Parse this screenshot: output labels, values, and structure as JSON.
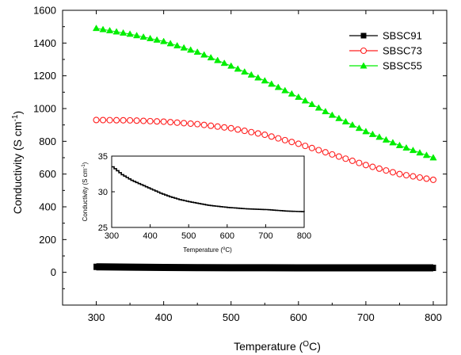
{
  "chart_data": [
    {
      "type": "line",
      "role": "main",
      "xlabel": "Temperature (",
      "xlabel_sup": "O",
      "xlabel_end": "C)",
      "ylabel": "Conductivity (S cm",
      "ylabel_sup": "-1",
      "ylabel_end": ")",
      "xlim": [
        250,
        820
      ],
      "ylim": [
        -200,
        1600
      ],
      "xticks": [
        300,
        400,
        500,
        600,
        700,
        800
      ],
      "yticks": [
        0,
        200,
        400,
        600,
        800,
        1000,
        1200,
        1400,
        1600
      ],
      "legend_position": "top-right",
      "series": [
        {
          "name": "SBSC91",
          "color": "#000000",
          "marker": "filled-square",
          "x": [
            300,
            350,
            400,
            450,
            500,
            550,
            600,
            650,
            700,
            750,
            800
          ],
          "y": [
            33.5,
            31.5,
            30.0,
            28.9,
            28.3,
            27.9,
            27.7,
            27.6,
            27.5,
            27.3,
            27.2
          ]
        },
        {
          "name": "SBSC73",
          "color": "#ff2020",
          "marker": "open-circle",
          "x": [
            300,
            350,
            400,
            450,
            500,
            550,
            600,
            650,
            700,
            750,
            800
          ],
          "y": [
            930,
            928,
            920,
            905,
            880,
            840,
            785,
            720,
            655,
            600,
            565
          ]
        },
        {
          "name": "SBSC55",
          "color": "#00ee00",
          "marker": "filled-triangle",
          "x": [
            300,
            350,
            400,
            450,
            500,
            550,
            600,
            650,
            700,
            750,
            800
          ],
          "y": [
            1490,
            1455,
            1410,
            1345,
            1260,
            1170,
            1070,
            960,
            860,
            775,
            700
          ]
        }
      ]
    },
    {
      "type": "line",
      "role": "inset",
      "xlabel": "Temperature (",
      "xlabel_sup": "o",
      "xlabel_end": "C)",
      "ylabel": "Conductivity (S cm",
      "ylabel_sup": "-1",
      "ylabel_end": ")",
      "xlim": [
        300,
        800
      ],
      "ylim": [
        25,
        35
      ],
      "xticks": [
        300,
        400,
        500,
        600,
        700,
        800
      ],
      "yticks": [
        25,
        30,
        35
      ],
      "series": [
        {
          "name": "SBSC91",
          "color": "#000000",
          "x": [
            300,
            325,
            350,
            375,
            400,
            425,
            450,
            475,
            500,
            550,
            600,
            650,
            700,
            750,
            800
          ],
          "y": [
            33.5,
            32.4,
            31.6,
            31.0,
            30.4,
            29.8,
            29.3,
            28.9,
            28.6,
            28.1,
            27.8,
            27.6,
            27.5,
            27.3,
            27.2
          ]
        }
      ]
    }
  ]
}
